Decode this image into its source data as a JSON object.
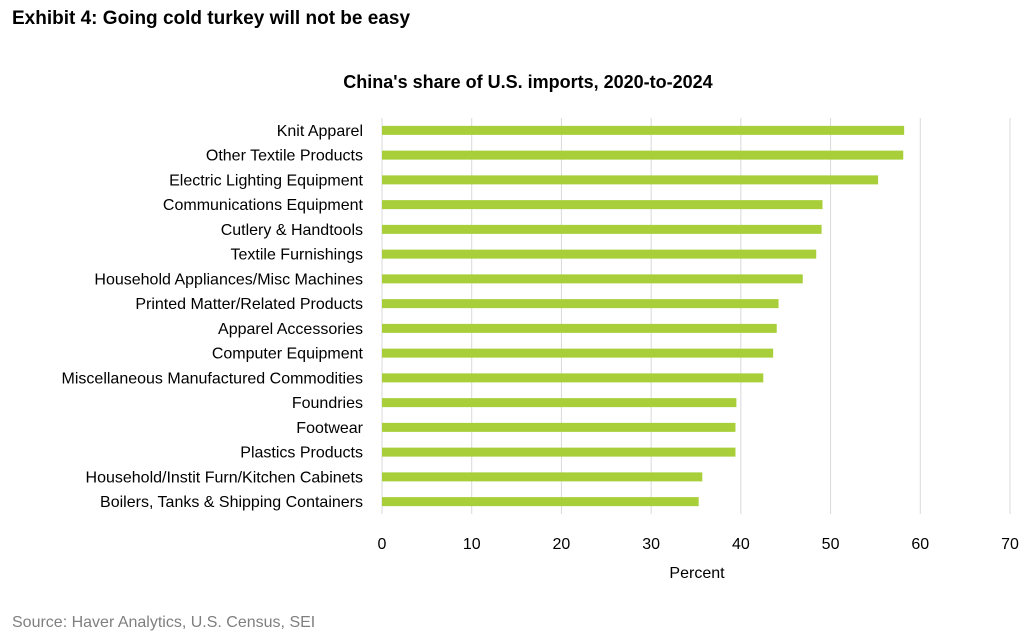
{
  "exhibit_title": "Exhibit 4: Going cold turkey will not be easy",
  "source": "Source: Haver Analytics, U.S. Census, SEI",
  "colors": {
    "bar": "#a8cf3a",
    "grid": "#d9d9d9",
    "text": "#000000",
    "source": "#7f7f7f"
  },
  "chart_data": {
    "type": "bar",
    "orientation": "horizontal",
    "title": "China's share of U.S. imports, 2020-to-2024",
    "xlabel": "Percent",
    "ylabel": "",
    "xlim": [
      0,
      70
    ],
    "xticks": [
      0,
      10,
      20,
      30,
      40,
      50,
      60,
      70
    ],
    "grid": true,
    "categories": [
      "Knit Apparel",
      "Other Textile Products",
      "Electric Lighting Equipment",
      "Communications Equipment",
      "Cutlery & Handtools",
      "Textile Furnishings",
      "Household Appliances/Misc Machines",
      "Printed Matter/Related Products",
      "Apparel Accessories",
      "Computer Equipment",
      "Miscellaneous Manufactured Commodities",
      "Foundries",
      "Footwear",
      "Plastics Products",
      "Household/Instit Furn/Kitchen Cabinets",
      "Boilers, Tanks & Shipping Containers"
    ],
    "values": [
      58.2,
      58.1,
      55.3,
      49.1,
      49.0,
      48.4,
      46.9,
      44.2,
      44.0,
      43.6,
      42.5,
      39.5,
      39.4,
      39.4,
      35.7,
      35.3
    ]
  }
}
